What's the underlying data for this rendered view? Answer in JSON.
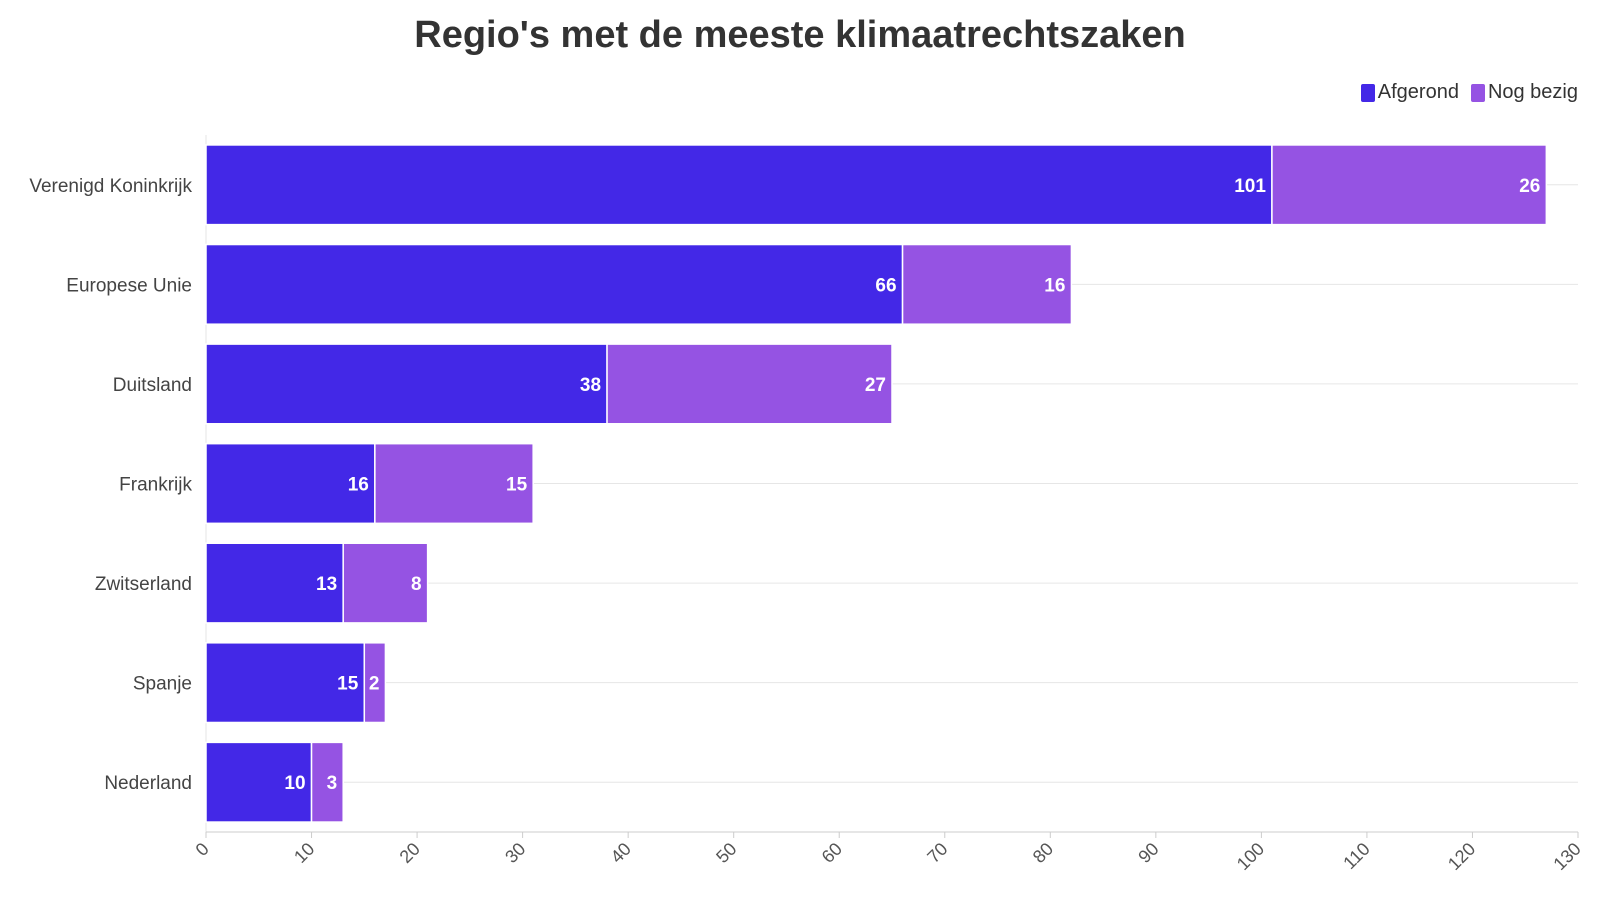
{
  "chart_data": {
    "type": "bar",
    "orientation": "horizontal",
    "stacked": true,
    "title": "Regio's met de meeste klimaatrechtszaken",
    "categories": [
      "Verenigd Koninkrijk",
      "Europese Unie",
      "Duitsland",
      "Frankrijk",
      "Zwitserland",
      "Spanje",
      "Nederland"
    ],
    "series": [
      {
        "name": "Afgerond",
        "color": "#4328e7",
        "values": [
          101,
          66,
          38,
          16,
          13,
          15,
          10
        ]
      },
      {
        "name": "Nog bezig",
        "color": "#9553e3",
        "values": [
          26,
          16,
          27,
          15,
          8,
          2,
          3
        ]
      }
    ],
    "xlim": [
      0,
      130
    ],
    "xticks": [
      0,
      10,
      20,
      30,
      40,
      50,
      60,
      70,
      80,
      90,
      100,
      110,
      120,
      130
    ],
    "grid": true,
    "legend_position": "top-right",
    "data_labels": true
  }
}
